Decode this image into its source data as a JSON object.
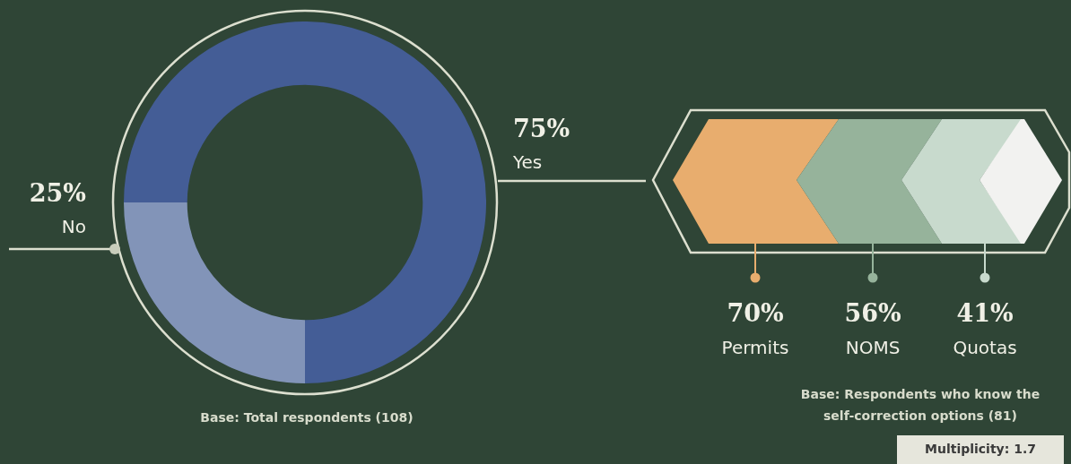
{
  "chart_data": [
    {
      "type": "donut",
      "categories": [
        "No",
        "Yes"
      ],
      "values": [
        25,
        75
      ],
      "colors": [
        "#8294b8",
        "#445d96"
      ],
      "value_labels": [
        "25%",
        "75%"
      ],
      "legend": false,
      "annotations": [
        "Base: Total respondents (108)"
      ]
    },
    {
      "type": "other",
      "categories": [
        "Permits",
        "NOMS",
        "Quotas"
      ],
      "values": [
        70,
        56,
        41
      ],
      "colors": [
        "#e8ad6e",
        "#96b39b",
        "#c8dacd"
      ],
      "value_labels": [
        "70%",
        "56%",
        "41%"
      ],
      "annotations": [
        "Base: Respondents who know the self-correction options (81)",
        "Multiplicity: 1.7"
      ]
    }
  ]
}
